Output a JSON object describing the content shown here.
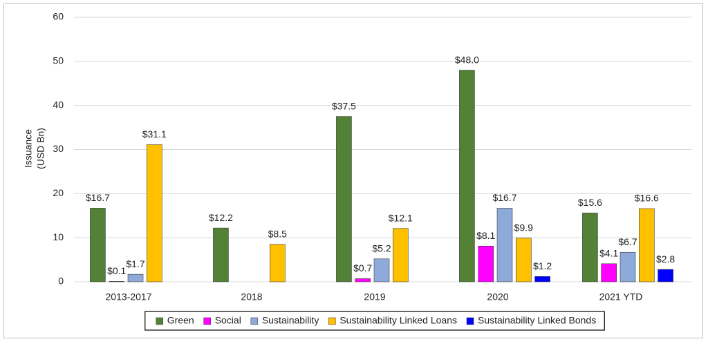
{
  "chart_data": {
    "type": "bar",
    "ylabel": [
      "Issuance",
      "(USD Bn)"
    ],
    "categories": [
      "2013-2017",
      "2018",
      "2019",
      "2020",
      "2021 YTD"
    ],
    "series": [
      {
        "name": "Green",
        "color": "#538135",
        "values": [
          16.7,
          12.2,
          37.5,
          48.0,
          15.6
        ],
        "value_labels": [
          "$16.7",
          "$12.2",
          "$37.5",
          "$48.0",
          "$15.6"
        ]
      },
      {
        "name": "Social",
        "color": "#ff00ff",
        "values": [
          0.1,
          null,
          0.7,
          8.1,
          4.1
        ],
        "value_labels": [
          "$0.1",
          null,
          "$0.7",
          "$8.1",
          "$4.1"
        ]
      },
      {
        "name": "Sustainability",
        "color": "#8eaadb",
        "values": [
          1.7,
          null,
          5.2,
          16.7,
          6.7
        ],
        "value_labels": [
          "$1.7",
          null,
          "$5.2",
          "$16.7",
          "$6.7"
        ]
      },
      {
        "name": "Sustainability Linked Loans",
        "color": "#ffc000",
        "values": [
          31.1,
          8.5,
          12.1,
          9.9,
          16.6
        ],
        "value_labels": [
          "$31.1",
          "$8.5",
          "$12.1",
          "$9.9",
          "$16.6"
        ]
      },
      {
        "name": "Sustainability Linked Bonds",
        "color": "#0000ff",
        "values": [
          null,
          null,
          null,
          1.2,
          2.8
        ],
        "value_labels": [
          null,
          null,
          null,
          "$1.2",
          "$2.8"
        ]
      }
    ],
    "ylim": [
      0,
      60
    ],
    "yticks": [
      0,
      10,
      20,
      30,
      40,
      50,
      60
    ],
    "grid": true,
    "legend": "bottom"
  }
}
